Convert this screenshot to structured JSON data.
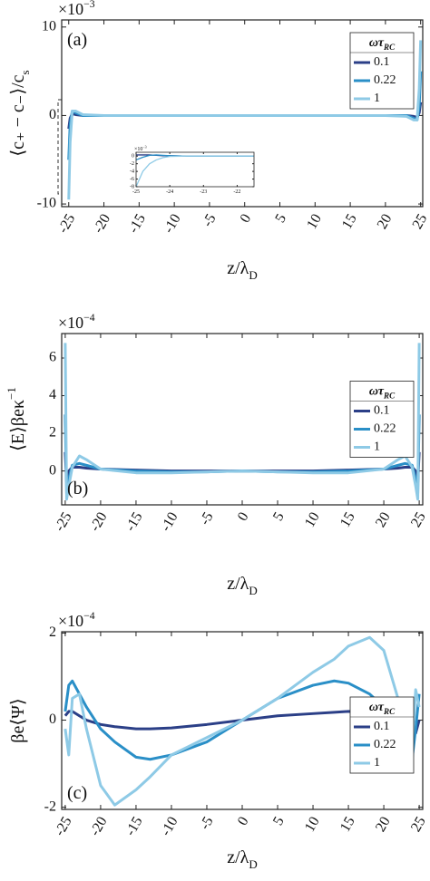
{
  "chart_data": [
    {
      "type": "line",
      "panel_label": "(a)",
      "ylabel": {
        "text": "⟨c₊ − c₋⟩/c",
        "sub": "s"
      },
      "xlabel": {
        "text": "z/λ",
        "sub": "D"
      },
      "y_exponent": {
        "text": "×10",
        "sup": "−3"
      },
      "xlim": [
        -26,
        25.3
      ],
      "ylim": [
        -10.3,
        10.8
      ],
      "xticks": [
        -25,
        -20,
        -15,
        -10,
        -5,
        0,
        5,
        10,
        15,
        20,
        25
      ],
      "yticks": [
        -10,
        0,
        10
      ],
      "legend_title": {
        "text": "ωτ",
        "sub": "RC"
      },
      "legend_corner": "upper right",
      "x": [
        -25,
        -24.8,
        -24.5,
        -24,
        -23,
        -20,
        -10,
        0,
        10,
        20,
        23,
        24,
        24.5,
        24.8,
        25
      ],
      "series": [
        {
          "name": "0.1",
          "color": "#2b3f87",
          "values": [
            -1.5,
            -0.3,
            0.2,
            0.1,
            0,
            0,
            0,
            0,
            0,
            0,
            0,
            -0.1,
            -0.2,
            0.3,
            1.5
          ]
        },
        {
          "name": "0.22",
          "color": "#2a8fc7",
          "values": [
            -5,
            -1,
            0.5,
            0.3,
            0,
            0,
            0,
            0,
            0,
            0,
            0,
            -0.3,
            -0.5,
            1,
            5
          ]
        },
        {
          "name": "1",
          "color": "#8ecae6",
          "values": [
            -9.5,
            -3,
            0.5,
            0.5,
            0.1,
            0,
            0,
            0,
            0,
            0,
            -0.1,
            -0.5,
            -0.5,
            3,
            8.5
          ]
        }
      ]
    },
    {
      "type": "line",
      "panel_label": "(b)",
      "ylabel": {
        "text": "⟨E⟩βeκ",
        "sup": "−1"
      },
      "xlabel": {
        "text": "z/λ",
        "sub": "D"
      },
      "y_exponent": {
        "text": "×10",
        "sup": "−4"
      },
      "xlim": [
        -25.5,
        25.5
      ],
      "ylim": [
        -1.8,
        7.3
      ],
      "xticks": [
        -25,
        -20,
        -15,
        -10,
        -5,
        0,
        5,
        10,
        15,
        20,
        25
      ],
      "yticks": [
        0,
        2,
        4,
        6
      ],
      "legend_title": {
        "text": "ωτ",
        "sub": "RC"
      },
      "legend_corner": "right",
      "x": [
        -25,
        -24.8,
        -24.5,
        -24,
        -23,
        -22,
        -20,
        -15,
        -10,
        -5,
        0,
        5,
        10,
        15,
        20,
        22,
        23,
        24,
        24.5,
        24.8,
        25
      ],
      "series": [
        {
          "name": "0.1",
          "color": "#2b3f87",
          "values": [
            1,
            -0.6,
            0,
            0.2,
            0.2,
            0.15,
            0.1,
            0.05,
            0,
            0,
            0,
            0,
            0,
            0.05,
            0.1,
            0.15,
            0.2,
            0.2,
            0,
            -0.6,
            1
          ]
        },
        {
          "name": "0.22",
          "color": "#2a8fc7",
          "values": [
            3,
            -1.2,
            -0.4,
            0.3,
            0.4,
            0.3,
            0.1,
            0,
            -0.05,
            -0.05,
            0,
            -0.05,
            -0.05,
            0,
            0.1,
            0.3,
            0.4,
            0.3,
            -0.4,
            -1.2,
            3
          ]
        },
        {
          "name": "1",
          "color": "#8ecae6",
          "values": [
            6.8,
            -1.5,
            -0.8,
            0.2,
            0.8,
            0.6,
            0.1,
            -0.1,
            -0.1,
            -0.05,
            0,
            -0.05,
            -0.1,
            -0.1,
            0.1,
            0.6,
            0.8,
            0.2,
            -0.8,
            -1.5,
            6.8
          ]
        }
      ]
    },
    {
      "type": "line",
      "panel_label": "(c)",
      "ylabel": {
        "text": "βe⟨Ψ⟩"
      },
      "xlabel": {
        "text": "z/λ",
        "sub": "D"
      },
      "y_exponent": {
        "text": "×10",
        "sup": "−4"
      },
      "xlim": [
        -25.5,
        25.5
      ],
      "ylim": [
        -2.05,
        2.03
      ],
      "xticks": [
        -25,
        -20,
        -15,
        -10,
        -5,
        0,
        5,
        10,
        15,
        20,
        25
      ],
      "yticks": [
        -2,
        0,
        2
      ],
      "legend_title": {
        "text": "ωτ",
        "sub": "RC"
      },
      "legend_corner": "lower right",
      "x": [
        -25,
        -24.5,
        -24,
        -23,
        -22,
        -20,
        -18,
        -15,
        -13,
        -10,
        -5,
        0,
        5,
        10,
        13,
        15,
        18,
        20,
        22,
        23,
        24,
        24.5,
        25
      ],
      "series": [
        {
          "name": "0.1",
          "color": "#2b3f87",
          "values": [
            0.1,
            0.2,
            0.2,
            0.1,
            0,
            -0.1,
            -0.15,
            -0.2,
            -0.2,
            -0.18,
            -0.1,
            0,
            0.1,
            0.15,
            0.18,
            0.2,
            0.18,
            0.15,
            0.1,
            0.05,
            -0.1,
            -0.3,
            0
          ]
        },
        {
          "name": "0.22",
          "color": "#2a8fc7",
          "values": [
            0.2,
            0.8,
            0.9,
            0.6,
            0.3,
            -0.2,
            -0.5,
            -0.85,
            -0.9,
            -0.8,
            -0.5,
            0,
            0.5,
            0.8,
            0.9,
            0.85,
            0.6,
            0.3,
            -0.2,
            -0.6,
            -0.9,
            -0.2,
            0.6
          ]
        },
        {
          "name": "1",
          "color": "#8ecae6",
          "values": [
            -0.2,
            -0.8,
            0.5,
            0.6,
            -0.2,
            -1.5,
            -1.95,
            -1.6,
            -1.3,
            -0.8,
            -0.4,
            0,
            0.5,
            1.1,
            1.4,
            1.7,
            1.9,
            1.6,
            0.5,
            -0.4,
            -0.6,
            0.7,
            0.3
          ]
        }
      ]
    },
    {
      "type": "line",
      "y_exponent": {
        "text": "×10",
        "sup": "−3"
      },
      "xlim": [
        -25,
        -21.5
      ],
      "ylim": [
        -8,
        1
      ],
      "xticks": [
        -25,
        -24,
        -23,
        -22
      ],
      "yticks": [
        -8,
        -6,
        -4,
        -2,
        0
      ],
      "x": [
        -25,
        -24.8,
        -24.6,
        -24.4,
        -24.2,
        -24,
        -23.5,
        -23,
        -22,
        -21.5
      ],
      "series": [
        {
          "color": "#2b3f87",
          "values": [
            0.3,
            0.3,
            0.3,
            0.2,
            0.1,
            0.1,
            0,
            0,
            0,
            0
          ]
        },
        {
          "color": "#2a8fc7",
          "values": [
            -1,
            -0.3,
            0.2,
            0.3,
            0.2,
            0.1,
            0,
            0,
            0,
            0
          ]
        },
        {
          "color": "#8ecae6",
          "values": [
            -8,
            -4,
            -2,
            -1,
            -0.4,
            -0.1,
            0,
            0,
            0,
            0
          ]
        }
      ]
    }
  ]
}
